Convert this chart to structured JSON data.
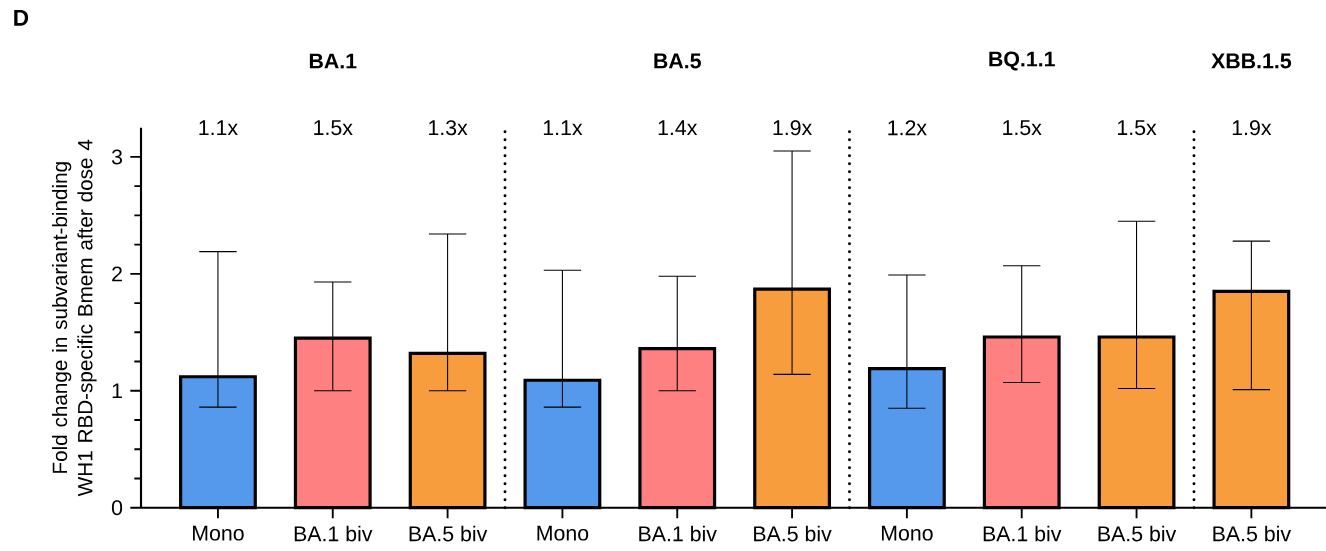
{
  "chart_data": {
    "type": "bar",
    "ylabel": "Fold change in subvariant-binding WH1 RBD-specific Bmem after dose 4",
    "categories": [
      "Mono",
      "BA.1 biv",
      "BA.5 biv",
      "Mono",
      "BA.1 biv",
      "BA.5 biv",
      "Mono",
      "BA.1 biv",
      "BA.5 biv",
      "BA.5 biv"
    ],
    "values": [
      1.12,
      1.45,
      1.32,
      1.09,
      1.36,
      1.87,
      1.19,
      1.46,
      1.46,
      1.85
    ],
    "colors": [
      "#5499ec",
      "#ff8080",
      "#f89d3d",
      "#5499ec",
      "#ff8080",
      "#f89d3d",
      "#5499ec",
      "#ff8080",
      "#f89d3d",
      "#f89d3d"
    ],
    "errors": [
      [
        0.86,
        2.19
      ],
      [
        1.0,
        1.93
      ],
      [
        1.0,
        2.34
      ],
      [
        0.86,
        2.03
      ],
      [
        1.0,
        1.98
      ],
      [
        1.14,
        3.05
      ],
      [
        0.85,
        1.99
      ],
      [
        1.07,
        2.07
      ],
      [
        1.02,
        2.45
      ],
      [
        1.01,
        2.28
      ]
    ],
    "ylim": [
      0,
      3.25
    ],
    "yticks": [
      0,
      1,
      2,
      3
    ],
    "annotations": [
      "D",
      "BA.1",
      "BA.5",
      "BQ.1.1",
      "XBB.1.5",
      "1.1x",
      "1.5x",
      "1.3x",
      "1.1x",
      "1.4x",
      "1.9x",
      "1.2x",
      "1.5x",
      "1.5x",
      "1.9x"
    ]
  }
}
